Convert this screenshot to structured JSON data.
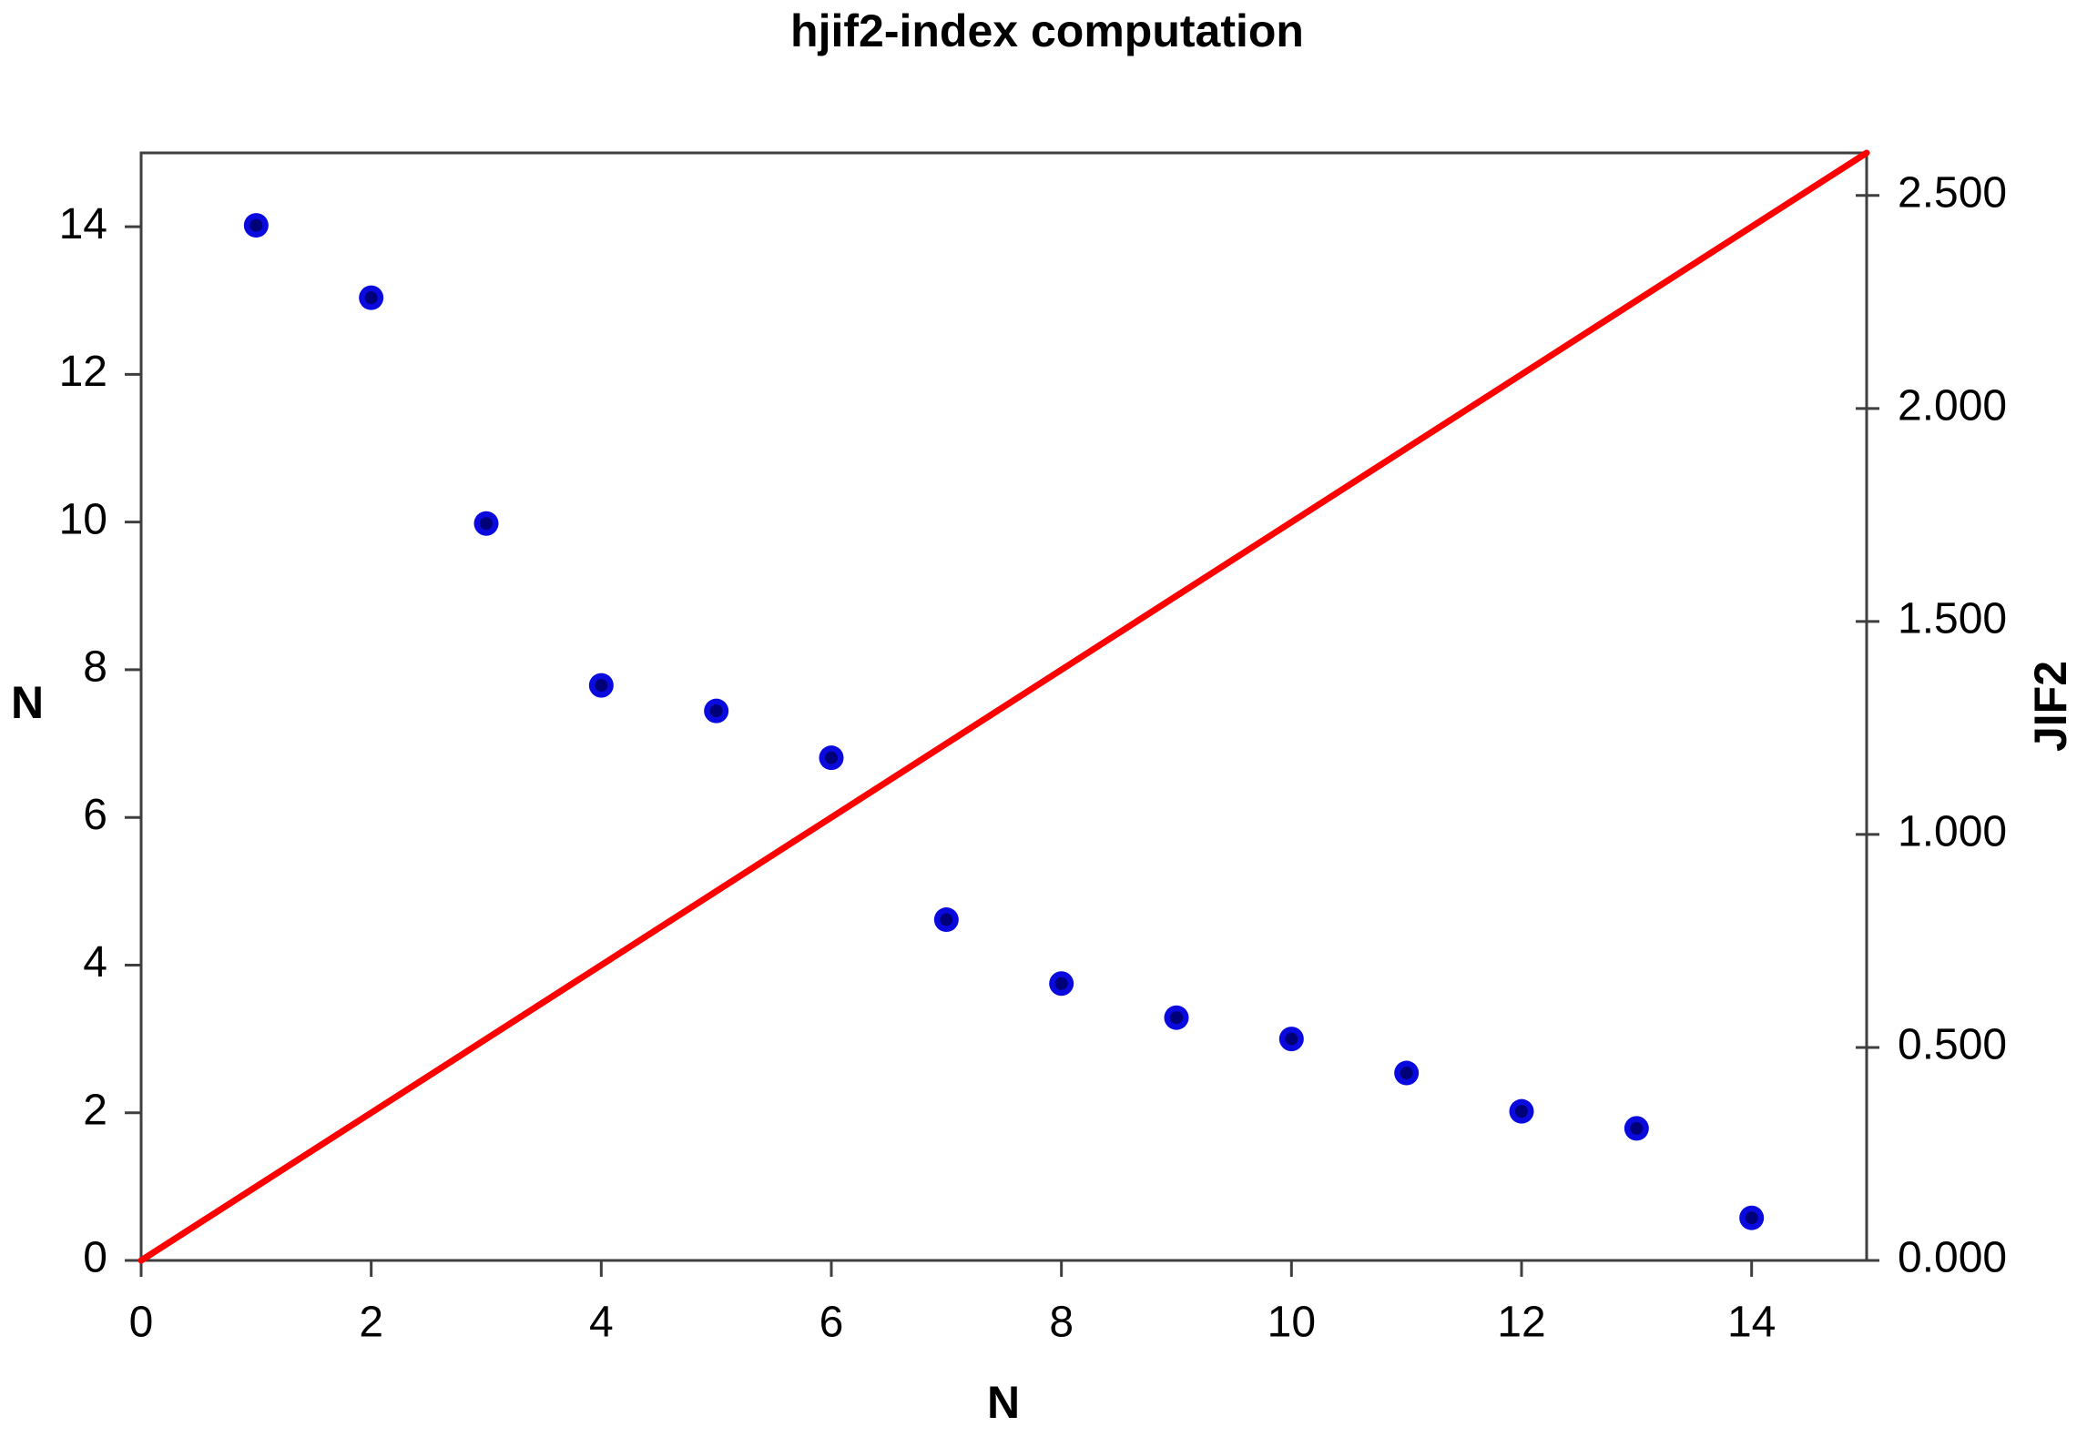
{
  "title": "hjif2-index computation",
  "colors": {
    "background": "#ffffff",
    "frame": "#3f3f3f",
    "tick": "#3f3f3f",
    "text": "#000000",
    "marker_fill": "#0a0adf",
    "marker_core": "#000078",
    "identity_line": "#ff0000"
  },
  "chart_data": {
    "type": "scatter",
    "title": "hjif2-index computation",
    "grid": false,
    "legend": "none",
    "axes": {
      "x": {
        "label": "N",
        "min": 0,
        "max": 15,
        "ticks": [
          "0",
          "2",
          "4",
          "6",
          "8",
          "10",
          "12",
          "14"
        ]
      },
      "left": {
        "label": "N",
        "min": 0,
        "max": 15,
        "ticks": [
          "0",
          "2",
          "4",
          "6",
          "8",
          "10",
          "12",
          "14"
        ]
      },
      "right": {
        "label": "JIF2",
        "min": 0,
        "max": 2.6,
        "ticks": [
          "0.000",
          "0.500",
          "1.000",
          "1.500",
          "2.000",
          "2.500"
        ]
      }
    },
    "series": [
      {
        "name": "JIF2 values",
        "style": "points",
        "axis": "right",
        "x": [
          1,
          2,
          3,
          4,
          5,
          6,
          7,
          8,
          9,
          10,
          11,
          12,
          13,
          14
        ],
        "values": [
          2.43,
          2.26,
          1.73,
          1.35,
          1.29,
          1.18,
          0.8,
          0.65,
          0.57,
          0.52,
          0.44,
          0.35,
          0.31,
          0.1
        ]
      },
      {
        "name": "N identity line",
        "style": "line",
        "axis": "left",
        "x": [
          0,
          15
        ],
        "values": [
          0,
          15
        ]
      }
    ]
  }
}
